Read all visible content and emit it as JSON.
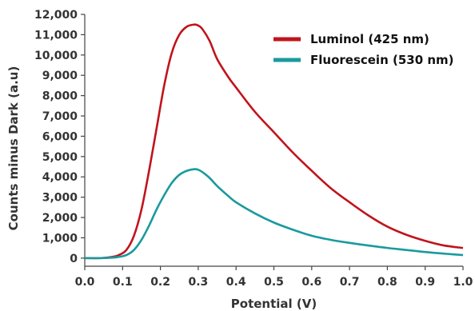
{
  "chart_data": {
    "type": "line",
    "title": "",
    "xlabel": "Potential (V)",
    "ylabel": "Counts minus Dark (a.u)",
    "xlim": [
      0.0,
      1.0
    ],
    "ylim": [
      -400,
      12000
    ],
    "x_ticks": [
      "0.0",
      "0.1",
      "0.2",
      "0.3",
      "0.4",
      "0.5",
      "0.6",
      "0.7",
      "0.8",
      "0.9",
      "1.0"
    ],
    "y_ticks": [
      "0",
      "1,000",
      "2,000",
      "3,000",
      "4,000",
      "5,000",
      "6,000",
      "7,000",
      "8,000",
      "9,000",
      "10,000",
      "11,000",
      "12,000"
    ],
    "grid": false,
    "legend_position": "top-right",
    "series": [
      {
        "name": "Luminol (425 nm)",
        "color": "#c0141c",
        "x": [
          0.0,
          0.04,
          0.07,
          0.09,
          0.11,
          0.13,
          0.15,
          0.17,
          0.19,
          0.21,
          0.23,
          0.25,
          0.27,
          0.29,
          0.3,
          0.31,
          0.33,
          0.35,
          0.38,
          0.4,
          0.45,
          0.5,
          0.55,
          0.6,
          0.65,
          0.7,
          0.75,
          0.8,
          0.85,
          0.9,
          0.95,
          1.0
        ],
        "y": [
          0,
          0,
          50,
          150,
          400,
          1100,
          2400,
          4300,
          6400,
          8500,
          10100,
          11000,
          11400,
          11500,
          11450,
          11300,
          10700,
          9800,
          8900,
          8400,
          7200,
          6200,
          5200,
          4300,
          3450,
          2750,
          2100,
          1550,
          1150,
          850,
          620,
          500
        ]
      },
      {
        "name": "Fluorescein (530 nm)",
        "color": "#1a9a9e",
        "x": [
          0.0,
          0.04,
          0.07,
          0.09,
          0.11,
          0.13,
          0.15,
          0.17,
          0.19,
          0.21,
          0.23,
          0.25,
          0.27,
          0.29,
          0.3,
          0.31,
          0.33,
          0.35,
          0.38,
          0.4,
          0.45,
          0.5,
          0.55,
          0.6,
          0.65,
          0.7,
          0.75,
          0.8,
          0.85,
          0.9,
          0.95,
          1.0
        ],
        "y": [
          0,
          0,
          20,
          60,
          150,
          400,
          900,
          1600,
          2400,
          3100,
          3700,
          4100,
          4300,
          4380,
          4350,
          4250,
          3950,
          3550,
          3050,
          2750,
          2200,
          1750,
          1400,
          1100,
          900,
          750,
          620,
          500,
          400,
          300,
          220,
          150
        ]
      }
    ]
  }
}
